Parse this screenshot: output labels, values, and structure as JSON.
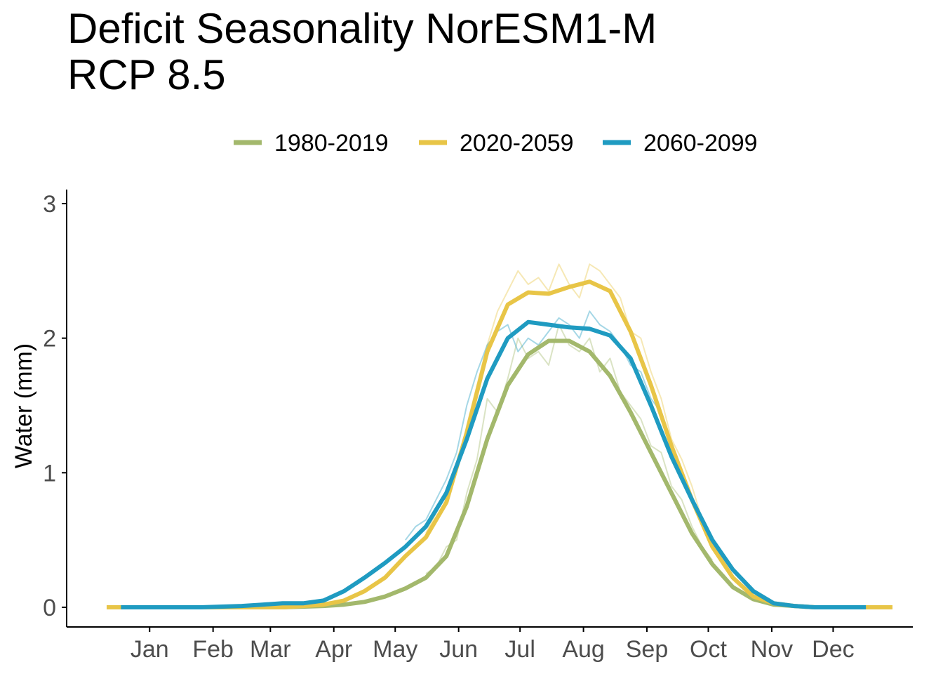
{
  "chart_data": {
    "type": "line",
    "title": "Deficit Seasonality NorESM1-M\nRCP 8.5",
    "xlabel": "",
    "ylabel": "Water (mm)",
    "ylim": [
      0,
      3
    ],
    "xlim": [
      -6,
      378
    ],
    "y_ticks": [
      "0",
      "1",
      "2",
      "3"
    ],
    "x_ticks": [
      {
        "label": "Jan",
        "doy": 15
      },
      {
        "label": "Feb",
        "doy": 46
      },
      {
        "label": "Mar",
        "doy": 74
      },
      {
        "label": "Apr",
        "doy": 105
      },
      {
        "label": "May",
        "doy": 135
      },
      {
        "label": "Jun",
        "doy": 166
      },
      {
        "label": "Jul",
        "doy": 196
      },
      {
        "label": "Aug",
        "doy": 227
      },
      {
        "label": "Sep",
        "doy": 258
      },
      {
        "label": "Oct",
        "doy": 288
      },
      {
        "label": "Nov",
        "doy": 319
      },
      {
        "label": "Dec",
        "doy": 349
      }
    ],
    "grid": false,
    "legend_position": "top",
    "series": [
      {
        "name": "1980-2019",
        "color": "#a3b86c",
        "smooth": {
          "x": [
            1,
            20,
            40,
            60,
            80,
            100,
            110,
            120,
            130,
            140,
            150,
            160,
            170,
            180,
            190,
            200,
            210,
            220,
            230,
            240,
            250,
            260,
            270,
            280,
            290,
            300,
            310,
            320,
            330,
            340,
            350,
            365
          ],
          "y": [
            0,
            0,
            0,
            0,
            0,
            0.01,
            0.02,
            0.04,
            0.08,
            0.14,
            0.22,
            0.38,
            0.75,
            1.25,
            1.65,
            1.88,
            1.98,
            1.98,
            1.9,
            1.72,
            1.45,
            1.15,
            0.85,
            0.55,
            0.32,
            0.15,
            0.06,
            0.02,
            0.01,
            0,
            0,
            0
          ]
        },
        "raw": {
          "x": [
            150,
            155,
            160,
            165,
            170,
            175,
            180,
            185,
            190,
            195,
            200,
            205,
            210,
            215,
            220,
            225,
            230,
            235,
            240,
            245,
            250,
            255,
            260,
            265,
            270,
            275,
            280,
            285,
            290
          ],
          "y": [
            0.25,
            0.3,
            0.45,
            0.5,
            0.85,
            1.1,
            1.55,
            1.45,
            1.7,
            2.0,
            1.85,
            1.9,
            1.8,
            2.1,
            1.95,
            1.9,
            2.0,
            1.75,
            1.85,
            1.6,
            1.5,
            1.4,
            1.2,
            1.15,
            0.9,
            0.8,
            0.6,
            0.45,
            0.35
          ]
        }
      },
      {
        "name": "2020-2059",
        "color": "#e8c547",
        "smooth": {
          "x": [
            -6,
            20,
            40,
            60,
            80,
            100,
            110,
            120,
            130,
            140,
            150,
            160,
            170,
            180,
            190,
            200,
            210,
            220,
            230,
            240,
            250,
            260,
            270,
            280,
            290,
            300,
            310,
            320,
            330,
            340,
            350,
            378
          ],
          "y": [
            0,
            0,
            0,
            0,
            0,
            0.02,
            0.05,
            0.12,
            0.22,
            0.38,
            0.52,
            0.78,
            1.3,
            1.9,
            2.25,
            2.34,
            2.33,
            2.38,
            2.42,
            2.35,
            2.05,
            1.65,
            1.2,
            0.8,
            0.45,
            0.22,
            0.08,
            0.03,
            0.01,
            0,
            0,
            0
          ]
        },
        "raw": {
          "x": [
            150,
            155,
            160,
            165,
            170,
            175,
            180,
            185,
            190,
            195,
            200,
            205,
            210,
            215,
            220,
            225,
            230,
            235,
            240,
            245,
            250,
            255,
            260,
            265,
            270,
            275,
            280,
            285,
            290
          ],
          "y": [
            0.55,
            0.7,
            0.85,
            1.0,
            1.35,
            1.65,
            1.95,
            2.2,
            2.35,
            2.5,
            2.4,
            2.45,
            2.35,
            2.55,
            2.4,
            2.3,
            2.55,
            2.5,
            2.4,
            2.3,
            2.05,
            2.0,
            1.75,
            1.55,
            1.25,
            1.1,
            0.9,
            0.65,
            0.5
          ]
        }
      },
      {
        "name": "2060-2099",
        "color": "#1f9bc1",
        "smooth": {
          "x": [
            1,
            20,
            40,
            60,
            70,
            80,
            90,
            100,
            110,
            120,
            130,
            140,
            150,
            160,
            170,
            180,
            190,
            200,
            210,
            220,
            230,
            240,
            250,
            260,
            270,
            280,
            290,
            300,
            310,
            320,
            330,
            340,
            350,
            365
          ],
          "y": [
            0,
            0,
            0,
            0.01,
            0.02,
            0.03,
            0.03,
            0.05,
            0.12,
            0.22,
            0.33,
            0.45,
            0.6,
            0.85,
            1.25,
            1.7,
            2.0,
            2.12,
            2.1,
            2.08,
            2.07,
            2.02,
            1.85,
            1.5,
            1.12,
            0.8,
            0.5,
            0.28,
            0.12,
            0.03,
            0.01,
            0,
            0,
            0
          ]
        },
        "raw": {
          "x": [
            140,
            145,
            150,
            155,
            160,
            165,
            170,
            175,
            180,
            185,
            190,
            195,
            200,
            205,
            210,
            215,
            220,
            225,
            230,
            235,
            240,
            245,
            250,
            255,
            260,
            265,
            270,
            275,
            280,
            285,
            290
          ],
          "y": [
            0.5,
            0.6,
            0.65,
            0.8,
            0.95,
            1.15,
            1.5,
            1.75,
            1.95,
            2.05,
            2.1,
            1.9,
            2.0,
            1.95,
            2.05,
            2.15,
            2.1,
            2.0,
            2.2,
            2.1,
            2.05,
            1.95,
            1.8,
            1.75,
            1.55,
            1.45,
            1.15,
            1.0,
            0.8,
            0.6,
            0.45
          ]
        }
      }
    ]
  }
}
